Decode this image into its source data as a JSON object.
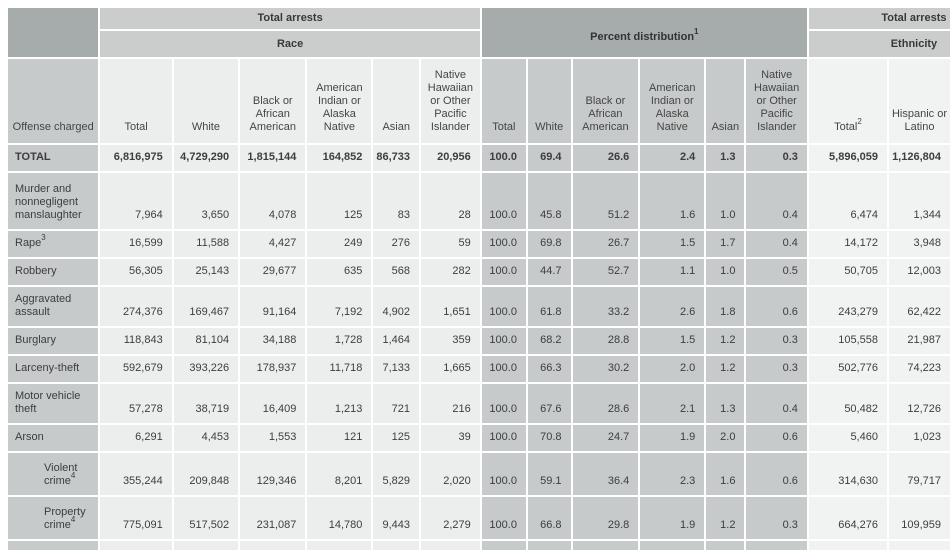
{
  "table": {
    "groups": {
      "race_top": "Total arrests",
      "race_sub": "Race",
      "percent": "Percent distribution",
      "percent_sup": "1",
      "eth_top": "Total arrests",
      "eth_sub": "Ethnicity"
    },
    "offense_header": "Offense charged",
    "race_columns": [
      "Total",
      "White",
      "Black or African American",
      "American Indian or Alaska Native",
      "Asian",
      "Native Hawaiian or Other Pacific Islander"
    ],
    "percent_columns": [
      "Total",
      "White",
      "Black or African American",
      "American Indian or Alaska Native",
      "Asian",
      "Native Hawaiian or Other Pacific Islander"
    ],
    "eth_columns": [
      {
        "label": "Total",
        "sup": "2"
      },
      {
        "label": "Hispanic or Latino",
        "sup": ""
      }
    ],
    "rows": [
      {
        "label": "TOTAL",
        "sup": "",
        "bold": true,
        "indent": false,
        "race": [
          "6,816,975",
          "4,729,290",
          "1,815,144",
          "164,852",
          "86,733",
          "20,956"
        ],
        "pct": [
          "100.0",
          "69.4",
          "26.6",
          "2.4",
          "1.3",
          "0.3"
        ],
        "eth": [
          "5,896,059",
          "1,126,804"
        ]
      },
      {
        "label": "Murder and nonnegligent manslaughter",
        "sup": "",
        "bold": false,
        "indent": false,
        "race": [
          "7,964",
          "3,650",
          "4,078",
          "125",
          "83",
          "28"
        ],
        "pct": [
          "100.0",
          "45.8",
          "51.2",
          "1.6",
          "1.0",
          "0.4"
        ],
        "eth": [
          "6,474",
          "1,344"
        ]
      },
      {
        "label": "Rape",
        "sup": "3",
        "bold": false,
        "indent": false,
        "race": [
          "16,599",
          "11,588",
          "4,427",
          "249",
          "276",
          "59"
        ],
        "pct": [
          "100.0",
          "69.8",
          "26.7",
          "1.5",
          "1.7",
          "0.4"
        ],
        "eth": [
          "14,172",
          "3,948"
        ]
      },
      {
        "label": "Robbery",
        "sup": "",
        "bold": false,
        "indent": false,
        "race": [
          "56,305",
          "25,143",
          "29,677",
          "635",
          "568",
          "282"
        ],
        "pct": [
          "100.0",
          "44.7",
          "52.7",
          "1.1",
          "1.0",
          "0.5"
        ],
        "eth": [
          "50,705",
          "12,003"
        ]
      },
      {
        "label": "Aggravated assault",
        "sup": "",
        "bold": false,
        "indent": false,
        "race": [
          "274,376",
          "169,467",
          "91,164",
          "7,192",
          "4,902",
          "1,651"
        ],
        "pct": [
          "100.0",
          "61.8",
          "33.2",
          "2.6",
          "1.8",
          "0.6"
        ],
        "eth": [
          "243,279",
          "62,422"
        ]
      },
      {
        "label": "Burglary",
        "sup": "",
        "bold": false,
        "indent": false,
        "race": [
          "118,843",
          "81,104",
          "34,188",
          "1,728",
          "1,464",
          "359"
        ],
        "pct": [
          "100.0",
          "68.2",
          "28.8",
          "1.5",
          "1.2",
          "0.3"
        ],
        "eth": [
          "105,558",
          "21,987"
        ]
      },
      {
        "label": "Larceny-theft",
        "sup": "",
        "bold": false,
        "indent": false,
        "race": [
          "592,679",
          "393,226",
          "178,937",
          "11,718",
          "7,133",
          "1,665"
        ],
        "pct": [
          "100.0",
          "66.3",
          "30.2",
          "2.0",
          "1.2",
          "0.3"
        ],
        "eth": [
          "502,776",
          "74,223"
        ]
      },
      {
        "label": "Motor vehicle theft",
        "sup": "",
        "bold": false,
        "indent": false,
        "race": [
          "57,278",
          "38,719",
          "16,409",
          "1,213",
          "721",
          "216"
        ],
        "pct": [
          "100.0",
          "67.6",
          "28.6",
          "2.1",
          "1.3",
          "0.4"
        ],
        "eth": [
          "50,482",
          "12,726"
        ]
      },
      {
        "label": "Arson",
        "sup": "",
        "bold": false,
        "indent": false,
        "race": [
          "6,291",
          "4,453",
          "1,553",
          "121",
          "125",
          "39"
        ],
        "pct": [
          "100.0",
          "70.8",
          "24.7",
          "1.9",
          "2.0",
          "0.6"
        ],
        "eth": [
          "5,460",
          "1,023"
        ]
      },
      {
        "label": "Violent crime",
        "sup": "4",
        "bold": false,
        "indent": true,
        "race": [
          "355,244",
          "209,848",
          "129,346",
          "8,201",
          "5,829",
          "2,020"
        ],
        "pct": [
          "100.0",
          "59.1",
          "36.4",
          "2.3",
          "1.6",
          "0.6"
        ],
        "eth": [
          "314,630",
          "79,717"
        ]
      },
      {
        "label": "Property crime",
        "sup": "4",
        "bold": false,
        "indent": true,
        "race": [
          "775,091",
          "517,502",
          "231,087",
          "14,780",
          "9,443",
          "2,279"
        ],
        "pct": [
          "100.0",
          "66.8",
          "29.8",
          "1.9",
          "1.2",
          "0.3"
        ],
        "eth": [
          "664,276",
          "109,959"
        ]
      },
      {
        "label": "",
        "sup": "",
        "bold": false,
        "indent": false,
        "race": [
          "",
          "",
          "",
          "",
          "",
          ""
        ],
        "pct": [
          "",
          "",
          "",
          "",
          "",
          ""
        ],
        "eth": [
          "",
          ""
        ]
      }
    ],
    "colors": {
      "header_dark": "#a6abab",
      "header_band": "#cbcdcd",
      "cell_offense": "#c6caca",
      "cell_race": "#eceeee",
      "cell_percent": "#c7caca",
      "cell_ethnicity": "#f1f3f3",
      "text": "#3d3d3d"
    }
  }
}
